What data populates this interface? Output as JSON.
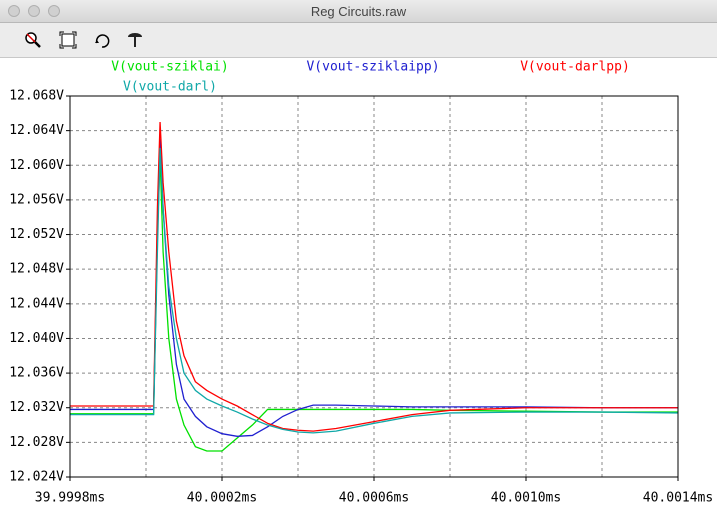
{
  "window_title": "Reg Circuits.raw",
  "chart_data": {
    "type": "line",
    "x": [
      39.9998,
      40.00001,
      40.00002,
      40.00003,
      40.000037,
      40.000045,
      40.00006,
      40.00008,
      40.0001,
      40.00013,
      40.00016,
      40.0002,
      40.00024,
      40.00028,
      40.00032,
      40.00036,
      40.0004,
      40.00044,
      40.0005,
      40.0006,
      40.0007,
      40.0008,
      40.001,
      40.0012,
      40.0014
    ],
    "series": [
      {
        "name": "V(vout-sziklai)",
        "color": "#00e000",
        "values": [
          12.0313,
          12.0313,
          12.0313,
          12.052,
          12.061,
          12.05,
          12.04,
          12.033,
          12.03,
          12.0275,
          12.027,
          12.027,
          12.0285,
          12.03,
          12.0318,
          12.0318,
          12.0318,
          12.0318,
          12.0318,
          12.0318,
          12.0318,
          12.0317,
          12.0316,
          12.0315,
          12.0315
        ]
      },
      {
        "name": "V(vout-sziklaipp)",
        "color": "#2020d0",
        "values": [
          12.0318,
          12.0318,
          12.0318,
          12.052,
          12.063,
          12.055,
          12.045,
          12.037,
          12.033,
          12.031,
          12.0298,
          12.029,
          12.0287,
          12.0288,
          12.0298,
          12.031,
          12.0318,
          12.0323,
          12.0323,
          12.0322,
          12.0321,
          12.0321,
          12.0321,
          12.032,
          12.032
        ]
      },
      {
        "name": "V(vout-darlpp)",
        "color": "#ff0000",
        "values": [
          12.0322,
          12.0322,
          12.0322,
          12.055,
          12.065,
          12.058,
          12.05,
          12.042,
          12.038,
          12.035,
          12.034,
          12.033,
          12.0322,
          12.0312,
          12.0302,
          12.0296,
          12.0294,
          12.0293,
          12.0296,
          12.0304,
          12.0312,
          12.0317,
          12.032,
          12.032,
          12.032
        ]
      },
      {
        "name": "V(vout-darl)",
        "color": "#10a8a8",
        "values": [
          12.0312,
          12.0312,
          12.0312,
          12.05,
          12.062,
          12.055,
          12.046,
          12.04,
          12.036,
          12.034,
          12.033,
          12.0322,
          12.0315,
          12.0307,
          12.03,
          12.0295,
          12.0292,
          12.0291,
          12.0293,
          12.0302,
          12.031,
          12.0314,
          12.0315,
          12.0315,
          12.0314
        ]
      }
    ],
    "xlim": [
      39.9998,
      40.0014
    ],
    "xticks": [
      {
        "value": 39.9998,
        "label": "39.9998ms"
      },
      {
        "value": 40.0002,
        "label": "40.0002ms"
      },
      {
        "value": 40.0006,
        "label": "40.0006ms"
      },
      {
        "value": 40.001,
        "label": "40.0010ms"
      },
      {
        "value": 40.0014,
        "label": "40.0014ms"
      }
    ],
    "xgrid": [
      40.0,
      40.0002,
      40.0004,
      40.0006,
      40.0008,
      40.001,
      40.0012
    ],
    "ylim": [
      12.024,
      12.068
    ],
    "yticks": [
      {
        "value": 12.024,
        "label": "12.024V"
      },
      {
        "value": 12.028,
        "label": "12.028V"
      },
      {
        "value": 12.032,
        "label": "12.032V"
      },
      {
        "value": 12.036,
        "label": "12.036V"
      },
      {
        "value": 12.04,
        "label": "12.040V"
      },
      {
        "value": 12.044,
        "label": "12.044V"
      },
      {
        "value": 12.048,
        "label": "12.048V"
      },
      {
        "value": 12.052,
        "label": "12.052V"
      },
      {
        "value": 12.056,
        "label": "12.056V"
      },
      {
        "value": 12.06,
        "label": "12.060V"
      },
      {
        "value": 12.064,
        "label": "12.064V"
      },
      {
        "value": 12.068,
        "label": "12.068V"
      }
    ],
    "grid": true
  }
}
